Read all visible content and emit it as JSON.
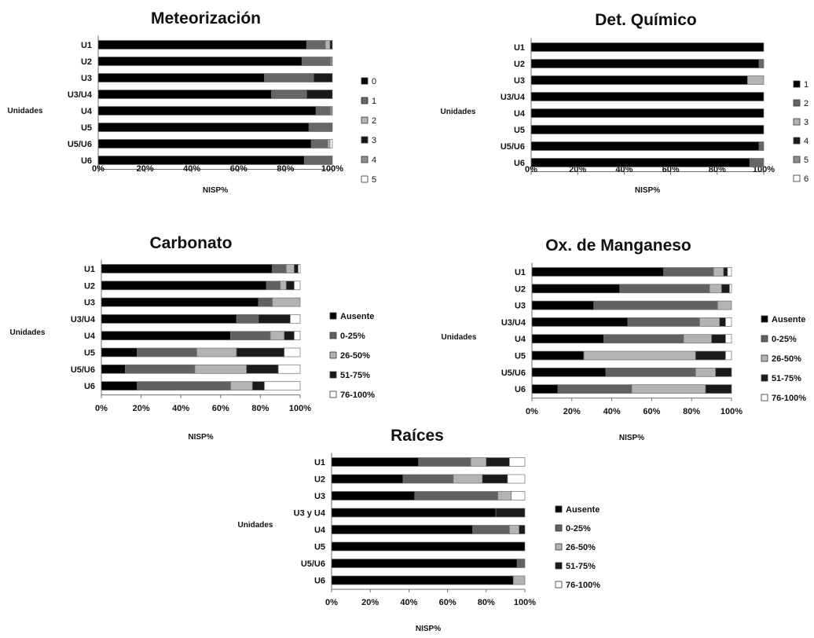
{
  "colors": {
    "grey5": [
      "#000000",
      "#616161",
      "#b3b3b3",
      "#1a1a1a",
      "#ffffff"
    ],
    "grey6": [
      "#000000",
      "#666666",
      "#b3b3b3",
      "#1a1a1a",
      "#8c8c8c",
      "#ffffff"
    ],
    "bar_stroke": "#6e6e6e",
    "axis": "#6e6e6e"
  },
  "chart_data": [
    {
      "type": "bar",
      "stacked": "horizontal-100%",
      "title": "Meteorización",
      "ylabel": "Unidades",
      "xlabel": "NISP%",
      "categories": [
        "U1",
        "U2",
        "U3",
        "U3/U4",
        "U4",
        "U5",
        "U5/U6",
        "U6"
      ],
      "xticks": [
        "0%",
        "20%",
        "40%",
        "60%",
        "80%",
        "100%"
      ],
      "xlim": [
        0,
        100
      ],
      "legend_position": "right",
      "palette": "grey6",
      "series": [
        {
          "name": "0",
          "values": [
            89,
            87,
            71,
            74,
            93,
            90,
            91,
            88
          ]
        },
        {
          "name": "1",
          "values": [
            8,
            12,
            21,
            15,
            6,
            10,
            7,
            12
          ]
        },
        {
          "name": "2",
          "values": [
            2,
            0,
            0,
            0,
            0,
            0,
            1,
            0
          ]
        },
        {
          "name": "3",
          "values": [
            1,
            0,
            8,
            11,
            0,
            0,
            0,
            0
          ]
        },
        {
          "name": "4",
          "values": [
            0,
            1,
            0,
            0,
            1,
            0,
            0,
            0
          ]
        },
        {
          "name": "5",
          "values": [
            0,
            0,
            0,
            0,
            0,
            0,
            1,
            0
          ]
        }
      ]
    },
    {
      "type": "bar",
      "stacked": "horizontal-100%",
      "title": "Det. Químico",
      "ylabel": "Unidades",
      "xlabel": "NISP%",
      "categories": [
        "U1",
        "U2",
        "U3",
        "U3/U4",
        "U4",
        "U5",
        "U5/U6",
        "U6"
      ],
      "xticks": [
        "0%",
        "20%",
        "40%",
        "60%",
        "80%",
        "100%"
      ],
      "xlim": [
        0,
        100
      ],
      "legend_position": "right",
      "palette": "grey6",
      "series": [
        {
          "name": "1",
          "values": [
            100,
            98,
            93,
            100,
            100,
            100,
            98,
            94
          ]
        },
        {
          "name": "2",
          "values": [
            0,
            2,
            0,
            0,
            0,
            0,
            2,
            6
          ]
        },
        {
          "name": "3",
          "values": [
            0,
            0,
            7,
            0,
            0,
            0,
            0,
            0
          ]
        },
        {
          "name": "4",
          "values": [
            0,
            0,
            0,
            0,
            0,
            0,
            0,
            0
          ]
        },
        {
          "name": "5",
          "values": [
            0,
            0,
            0,
            0,
            0,
            0,
            0,
            0
          ]
        },
        {
          "name": "6",
          "values": [
            0,
            0,
            0,
            0,
            0,
            0,
            0,
            0
          ]
        }
      ]
    },
    {
      "type": "bar",
      "stacked": "horizontal-100%",
      "title": "Carbonato",
      "ylabel": "Unidades",
      "xlabel": "NISP%",
      "categories": [
        "U1",
        "U2",
        "U3",
        "U3/U4",
        "U4",
        "U5",
        "U5/U6",
        "U6"
      ],
      "xticks": [
        "0%",
        "20%",
        "40%",
        "60%",
        "80%",
        "100%"
      ],
      "xlim": [
        0,
        100
      ],
      "legend_position": "right",
      "palette": "grey5",
      "series": [
        {
          "name": "Ausente",
          "values": [
            86,
            83,
            79,
            68,
            65,
            18,
            12,
            18
          ]
        },
        {
          "name": "0-25%",
          "values": [
            7,
            7,
            7,
            11,
            20,
            30,
            35,
            47
          ]
        },
        {
          "name": "26-50%",
          "values": [
            4,
            3,
            14,
            0,
            7,
            20,
            26,
            11
          ]
        },
        {
          "name": "51-75%",
          "values": [
            2,
            4,
            0,
            16,
            5,
            24,
            16,
            6
          ]
        },
        {
          "name": "76-100%",
          "values": [
            1,
            3,
            0,
            5,
            3,
            8,
            11,
            18
          ]
        }
      ]
    },
    {
      "type": "bar",
      "stacked": "horizontal-100%",
      "title": "Ox. de Manganeso",
      "ylabel": "Unidades",
      "xlabel": "NISP%",
      "categories": [
        "U1",
        "U2",
        "U3",
        "U3/U4",
        "U4",
        "U5",
        "U5/U6",
        "U6"
      ],
      "xticks": [
        "0%",
        "20%",
        "40%",
        "60%",
        "80%",
        "100%"
      ],
      "xlim": [
        0,
        100
      ],
      "legend_position": "right",
      "palette": "grey5",
      "series": [
        {
          "name": "Ausente",
          "values": [
            66,
            44,
            31,
            48,
            36,
            26,
            37,
            13
          ]
        },
        {
          "name": "0-25%",
          "values": [
            25,
            45,
            62,
            36,
            40,
            0,
            45,
            37
          ]
        },
        {
          "name": "26-50%",
          "values": [
            5,
            6,
            7,
            10,
            14,
            56,
            10,
            37
          ]
        },
        {
          "name": "51-75%",
          "values": [
            2,
            4,
            0,
            3,
            7,
            15,
            8,
            13
          ]
        },
        {
          "name": "76-100%",
          "values": [
            2,
            1,
            0,
            3,
            3,
            3,
            0,
            0
          ]
        }
      ]
    },
    {
      "type": "bar",
      "stacked": "horizontal-100%",
      "title": "Raíces",
      "ylabel": "Unidades",
      "xlabel": "NISP%",
      "categories": [
        "U1",
        "U2",
        "U3",
        "U3 y U4",
        "U4",
        "U5",
        "U5/U6",
        "U6"
      ],
      "xticks": [
        "0%",
        "20%",
        "40%",
        "60%",
        "80%",
        "100%"
      ],
      "xlim": [
        0,
        100
      ],
      "legend_position": "right",
      "palette": "grey5",
      "series": [
        {
          "name": "Ausente",
          "values": [
            45,
            37,
            43,
            85,
            73,
            100,
            96,
            94
          ]
        },
        {
          "name": "0-25%",
          "values": [
            27,
            26,
            43,
            0,
            19,
            0,
            4,
            0
          ]
        },
        {
          "name": "26-50%",
          "values": [
            8,
            15,
            7,
            0,
            5,
            0,
            0,
            6
          ]
        },
        {
          "name": "51-75%",
          "values": [
            12,
            13,
            0,
            15,
            3,
            0,
            0,
            0
          ]
        },
        {
          "name": "76-100%",
          "values": [
            8,
            9,
            7,
            0,
            0,
            0,
            0,
            0
          ]
        }
      ]
    }
  ]
}
